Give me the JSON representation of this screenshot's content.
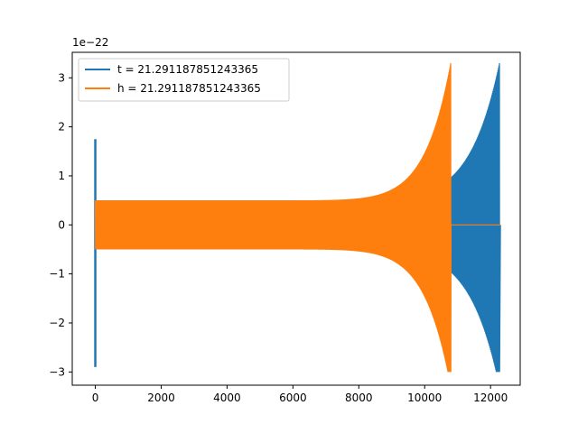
{
  "chart_data": {
    "type": "line",
    "title": "",
    "xlabel": "",
    "ylabel": "",
    "xlim": [
      -700,
      12900
    ],
    "ylim": [
      -3.27,
      3.52
    ],
    "y_offset_label": "1e−22",
    "x_ticks": [
      0,
      2000,
      4000,
      6000,
      8000,
      10000,
      12000
    ],
    "x_tick_labels": [
      "0",
      "2000",
      "4000",
      "6000",
      "8000",
      "10000",
      "12000"
    ],
    "y_ticks": [
      -3,
      -2,
      -1,
      0,
      1,
      2,
      3
    ],
    "y_tick_labels": [
      "−3",
      "−2",
      "−1",
      "0",
      "1",
      "2",
      "3"
    ],
    "grid": false,
    "legend_position": "upper-left",
    "series": [
      {
        "name": "t = 21.291187851243365",
        "color": "#1f77b4",
        "kind": "chirp",
        "start": 0,
        "merger": 12270,
        "end": 12300,
        "min_amplitude": 0.5,
        "max_amplitude": 3.3,
        "min_value_at_merger": -3.0,
        "initial_spike": [
          1.75,
          -2.9
        ]
      },
      {
        "name": "h = 21.291187851243365",
        "color": "#ff7f0e",
        "kind": "chirp",
        "start": 0,
        "merger": 10790,
        "end": 10800,
        "tail_end": 12300,
        "tail_value": 0,
        "min_amplitude": 0.5,
        "max_amplitude": 3.3,
        "min_value_at_merger": -3.0
      }
    ]
  }
}
